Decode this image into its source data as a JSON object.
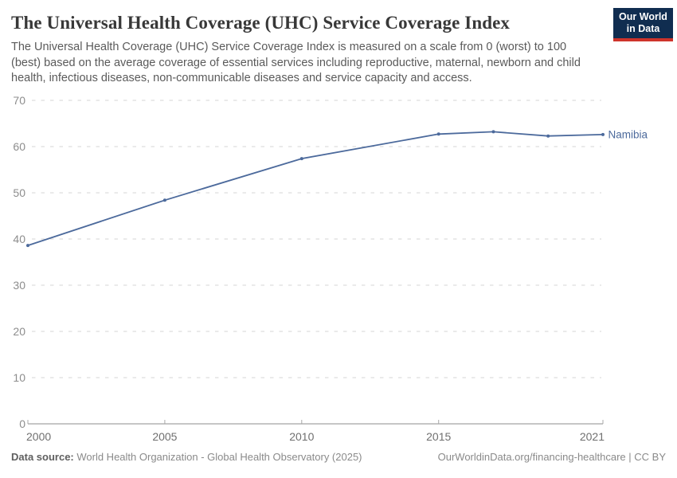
{
  "header": {
    "title": "The Universal Health Coverage (UHC) Service Coverage Index",
    "subtitle": "The Universal Health Coverage (UHC) Service Coverage Index is measured on a scale from 0 (worst) to 100 (best) based on the average coverage of essential services including reproductive, maternal, newborn and child health, infectious diseases, non-communicable diseases and service capacity and access.",
    "logo": {
      "line1": "Our World",
      "line2": "in Data",
      "bg_color": "#102d50",
      "accent_color": "#ce342b"
    }
  },
  "chart_data": {
    "type": "line",
    "title": "The Universal Health Coverage (UHC) Service Coverage Index",
    "xlabel": "",
    "ylabel": "",
    "xlim": [
      2000,
      2021
    ],
    "ylim": [
      0,
      70
    ],
    "x_ticks": [
      2000,
      2005,
      2010,
      2015,
      2021
    ],
    "y_ticks": [
      0,
      10,
      20,
      30,
      40,
      50,
      60,
      70
    ],
    "grid": "horizontal-dashed",
    "legend": "end-of-line-label",
    "series": [
      {
        "name": "Namibia",
        "color": "#4c6a9c",
        "x": [
          2000,
          2005,
          2010,
          2015,
          2017,
          2019,
          2021
        ],
        "values": [
          38.6,
          48.4,
          57.4,
          62.7,
          63.2,
          62.3,
          62.6
        ]
      }
    ],
    "colors": {
      "gridline": "#dedede",
      "axis_line": "#8c8c8c",
      "tick_mark": "#a8a8a8"
    }
  },
  "footer": {
    "source_label": "Data source:",
    "source_text": " World Health Organization - Global Health Observatory (2025)",
    "credit": "OurWorldinData.org/financing-healthcare | CC BY"
  }
}
